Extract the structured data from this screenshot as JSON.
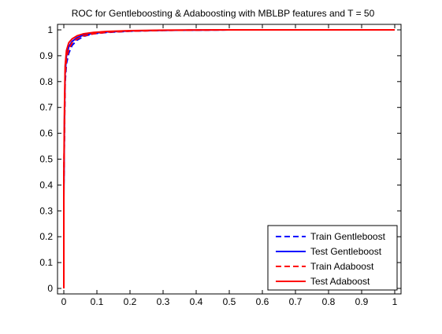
{
  "chart_data": {
    "type": "line",
    "title": "ROC for Gentleboosting & Adaboosting with MBLBP features and T = 50",
    "xlabel": "",
    "ylabel": "",
    "xlim": [
      0,
      1
    ],
    "ylim": [
      0,
      1
    ],
    "xticks": [
      "0",
      "0.1",
      "0.2",
      "0.3",
      "0.4",
      "0.5",
      "0.6",
      "0.7",
      "0.8",
      "0.9",
      "1"
    ],
    "yticks": [
      "0",
      "0.1",
      "0.2",
      "0.3",
      "0.4",
      "0.5",
      "0.6",
      "0.7",
      "0.8",
      "0.9",
      "1"
    ],
    "grid": false,
    "legend_position": "bottom-right",
    "series": [
      {
        "name": "Train Gentleboost",
        "color": "#0000ff",
        "style": "dashed",
        "points": [
          [
            0,
            0
          ],
          [
            0,
            0.4
          ],
          [
            0.002,
            0.62
          ],
          [
            0.004,
            0.8
          ],
          [
            0.008,
            0.87
          ],
          [
            0.015,
            0.91
          ],
          [
            0.025,
            0.94
          ],
          [
            0.04,
            0.96
          ],
          [
            0.06,
            0.975
          ],
          [
            0.09,
            0.985
          ],
          [
            0.13,
            0.99
          ],
          [
            0.2,
            0.995
          ],
          [
            0.3,
            0.998
          ],
          [
            0.5,
            1.0
          ],
          [
            1.0,
            1.0
          ]
        ]
      },
      {
        "name": "Test Gentleboost",
        "color": "#0000ff",
        "style": "solid",
        "points": [
          [
            0,
            0
          ],
          [
            0,
            0.35
          ],
          [
            0.002,
            0.65
          ],
          [
            0.004,
            0.83
          ],
          [
            0.008,
            0.9
          ],
          [
            0.015,
            0.935
          ],
          [
            0.025,
            0.955
          ],
          [
            0.04,
            0.97
          ],
          [
            0.06,
            0.98
          ],
          [
            0.09,
            0.987
          ],
          [
            0.13,
            0.992
          ],
          [
            0.2,
            0.996
          ],
          [
            0.3,
            0.998
          ],
          [
            0.5,
            1.0
          ],
          [
            1.0,
            1.0
          ]
        ]
      },
      {
        "name": "Train Adaboost",
        "color": "#ff0000",
        "style": "dashed",
        "points": [
          [
            0,
            0
          ],
          [
            0,
            0.4
          ],
          [
            0.002,
            0.63
          ],
          [
            0.004,
            0.82
          ],
          [
            0.008,
            0.89
          ],
          [
            0.015,
            0.925
          ],
          [
            0.025,
            0.95
          ],
          [
            0.04,
            0.965
          ],
          [
            0.06,
            0.977
          ],
          [
            0.09,
            0.985
          ],
          [
            0.13,
            0.991
          ],
          [
            0.2,
            0.995
          ],
          [
            0.3,
            0.998
          ],
          [
            0.5,
            1.0
          ],
          [
            1.0,
            1.0
          ]
        ]
      },
      {
        "name": "Test Adaboost",
        "color": "#ff0000",
        "style": "solid",
        "points": [
          [
            0,
            0
          ],
          [
            0,
            0.42
          ],
          [
            0.002,
            0.7
          ],
          [
            0.004,
            0.86
          ],
          [
            0.008,
            0.92
          ],
          [
            0.015,
            0.95
          ],
          [
            0.025,
            0.965
          ],
          [
            0.04,
            0.977
          ],
          [
            0.06,
            0.985
          ],
          [
            0.09,
            0.99
          ],
          [
            0.13,
            0.994
          ],
          [
            0.2,
            0.997
          ],
          [
            0.3,
            0.999
          ],
          [
            0.5,
            1.0
          ],
          [
            1.0,
            1.0
          ]
        ]
      }
    ]
  }
}
